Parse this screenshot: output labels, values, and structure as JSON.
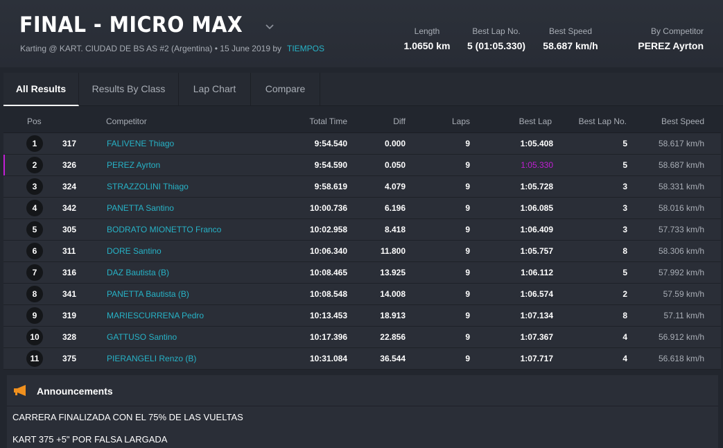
{
  "header": {
    "title": "FINAL - MICRO MAX",
    "subtitle": "Karting @ KART. CIUDAD DE BS AS #2 (Argentina) • 15 June 2019 by",
    "subtitle_link": "TIEMPOS",
    "stats": {
      "length": {
        "label": "Length",
        "value": "1.0650 km"
      },
      "best_lap_no": {
        "label": "Best Lap No.",
        "value": "5 (01:05.330)"
      },
      "best_speed": {
        "label": "Best Speed",
        "value": "58.687 km/h"
      },
      "by_competitor": {
        "label": "By Competitor",
        "value": "PEREZ Ayrton"
      }
    }
  },
  "tabs": [
    {
      "label": "All Results",
      "active": true
    },
    {
      "label": "Results By Class",
      "active": false
    },
    {
      "label": "Lap Chart",
      "active": false
    },
    {
      "label": "Compare",
      "active": false
    }
  ],
  "table": {
    "headers": {
      "pos": "Pos",
      "competitor": "Competitor",
      "total_time": "Total Time",
      "diff": "Diff",
      "laps": "Laps",
      "best_lap": "Best Lap",
      "best_lap_no": "Best Lap No.",
      "best_speed": "Best Speed"
    },
    "rows": [
      {
        "pos": "1",
        "num": "317",
        "name": "FALIVENE Thiago",
        "total": "9:54.540",
        "diff": "0.000",
        "laps": "9",
        "best": "1:05.408",
        "best_no": "5",
        "speed": "58.617 km/h"
      },
      {
        "pos": "2",
        "num": "326",
        "name": "PEREZ Ayrton",
        "total": "9:54.590",
        "diff": "0.050",
        "laps": "9",
        "best": "1:05.330",
        "best_no": "5",
        "speed": "58.687 km/h"
      },
      {
        "pos": "3",
        "num": "324",
        "name": "STRAZZOLINI Thiago",
        "total": "9:58.619",
        "diff": "4.079",
        "laps": "9",
        "best": "1:05.728",
        "best_no": "3",
        "speed": "58.331 km/h"
      },
      {
        "pos": "4",
        "num": "342",
        "name": "PANETTA Santino",
        "total": "10:00.736",
        "diff": "6.196",
        "laps": "9",
        "best": "1:06.085",
        "best_no": "3",
        "speed": "58.016 km/h"
      },
      {
        "pos": "5",
        "num": "305",
        "name": "BODRATO MIONETTO Franco",
        "total": "10:02.958",
        "diff": "8.418",
        "laps": "9",
        "best": "1:06.409",
        "best_no": "3",
        "speed": "57.733 km/h"
      },
      {
        "pos": "6",
        "num": "311",
        "name": "DORE Santino",
        "total": "10:06.340",
        "diff": "11.800",
        "laps": "9",
        "best": "1:05.757",
        "best_no": "8",
        "speed": "58.306 km/h"
      },
      {
        "pos": "7",
        "num": "316",
        "name": "DAZ Bautista (B)",
        "total": "10:08.465",
        "diff": "13.925",
        "laps": "9",
        "best": "1:06.112",
        "best_no": "5",
        "speed": "57.992 km/h"
      },
      {
        "pos": "8",
        "num": "341",
        "name": "PANETTA Bautista (B)",
        "total": "10:08.548",
        "diff": "14.008",
        "laps": "9",
        "best": "1:06.574",
        "best_no": "2",
        "speed": "57.59 km/h"
      },
      {
        "pos": "9",
        "num": "319",
        "name": "MARIESCURRENA Pedro",
        "total": "10:13.453",
        "diff": "18.913",
        "laps": "9",
        "best": "1:07.134",
        "best_no": "8",
        "speed": "57.11 km/h"
      },
      {
        "pos": "10",
        "num": "328",
        "name": "GATTUSO Santino",
        "total": "10:17.396",
        "diff": "22.856",
        "laps": "9",
        "best": "1:07.367",
        "best_no": "4",
        "speed": "56.912 km/h"
      },
      {
        "pos": "11",
        "num": "375",
        "name": "PIERANGELI Renzo (B)",
        "total": "10:31.084",
        "diff": "36.544",
        "laps": "9",
        "best": "1:07.717",
        "best_no": "4",
        "speed": "56.618 km/h"
      }
    ]
  },
  "announcements": {
    "title": "Announcements",
    "lines": [
      "CARRERA FINALIZADA CON EL 75% DE LAS VUELTAS",
      "KART 375 +5\" POR FALSA LARGADA"
    ]
  },
  "colors": {
    "accent": "#27b3c7",
    "best_lap_highlight": "#c21fd6",
    "icon_orange": "#f0901e"
  },
  "icons": {
    "title_dropdown": "chevron-down-icon",
    "announcements": "megaphone-icon"
  }
}
